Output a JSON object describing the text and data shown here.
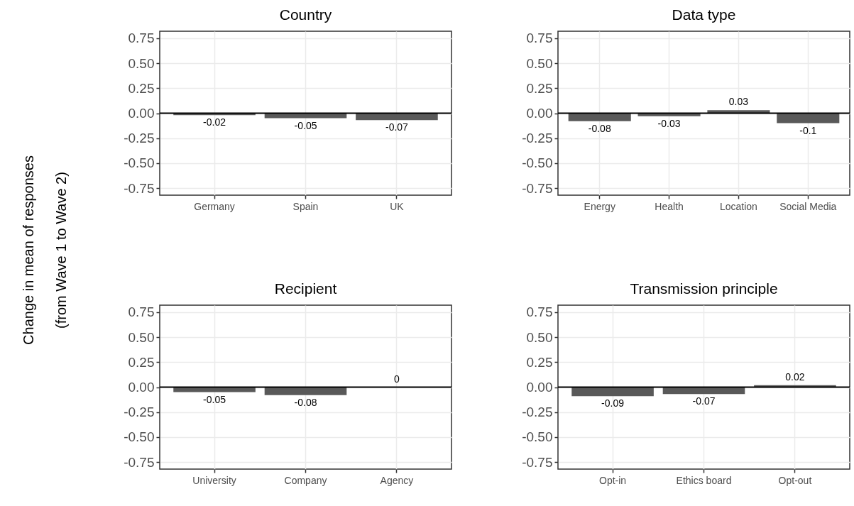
{
  "chart_data": [
    {
      "type": "bar",
      "title": "Country",
      "ylabel": "Change in mean of responses\n(from Wave 1 to Wave 2)",
      "categories": [
        "Germany",
        "Spain",
        "UK"
      ],
      "values": [
        -0.02,
        -0.05,
        -0.07
      ],
      "color": "#595959",
      "ylim": [
        -0.82,
        0.82
      ],
      "yticks": [
        {
          "value": -0.75,
          "label": "-0.75"
        },
        {
          "value": -0.5,
          "label": "-0.50"
        },
        {
          "value": -0.25,
          "label": "-0.25"
        },
        {
          "value": 0,
          "label": "0.00"
        },
        {
          "value": 0.25,
          "label": "0.25"
        },
        {
          "value": 0.5,
          "label": "0.50"
        },
        {
          "value": 0.75,
          "label": "0.75"
        }
      ],
      "grid": true,
      "data_labels": true,
      "ref_lines": [
        {
          "axis": "y",
          "value": 0,
          "color": "#000000"
        }
      ]
    },
    {
      "type": "bar",
      "title": "Data type",
      "categories": [
        "Energy",
        "Health",
        "Location",
        "Social Media"
      ],
      "values": [
        -0.08,
        -0.03,
        0.03,
        -0.1
      ],
      "color": "#595959",
      "ylim": [
        -0.82,
        0.82
      ],
      "yticks": [
        {
          "value": -0.75,
          "label": "-0.75"
        },
        {
          "value": -0.5,
          "label": "-0.50"
        },
        {
          "value": -0.25,
          "label": "-0.25"
        },
        {
          "value": 0,
          "label": "0.00"
        },
        {
          "value": 0.25,
          "label": "0.25"
        },
        {
          "value": 0.5,
          "label": "0.50"
        },
        {
          "value": 0.75,
          "label": "0.75"
        }
      ],
      "grid": true,
      "data_labels": true,
      "ref_lines": [
        {
          "axis": "y",
          "value": 0,
          "color": "#000000"
        }
      ]
    },
    {
      "type": "bar",
      "title": "Recipient",
      "categories": [
        "University",
        "Company",
        "Agency"
      ],
      "values": [
        -0.05,
        -0.08,
        0
      ],
      "color": "#595959",
      "ylim": [
        -0.82,
        0.82
      ],
      "yticks": [
        {
          "value": -0.75,
          "label": "-0.75"
        },
        {
          "value": -0.5,
          "label": "-0.50"
        },
        {
          "value": -0.25,
          "label": "-0.25"
        },
        {
          "value": 0,
          "label": "0.00"
        },
        {
          "value": 0.25,
          "label": "0.25"
        },
        {
          "value": 0.5,
          "label": "0.50"
        },
        {
          "value": 0.75,
          "label": "0.75"
        }
      ],
      "grid": true,
      "data_labels": true,
      "ref_lines": [
        {
          "axis": "y",
          "value": 0,
          "color": "#000000"
        }
      ]
    },
    {
      "type": "bar",
      "title": "Transmission principle",
      "categories": [
        "Opt-in",
        "Ethics board",
        "Opt-out"
      ],
      "values": [
        -0.09,
        -0.07,
        0.02
      ],
      "color": "#595959",
      "ylim": [
        -0.82,
        0.82
      ],
      "yticks": [
        {
          "value": -0.75,
          "label": "-0.75"
        },
        {
          "value": -0.5,
          "label": "-0.50"
        },
        {
          "value": -0.25,
          "label": "-0.25"
        },
        {
          "value": 0,
          "label": "0.00"
        },
        {
          "value": 0.25,
          "label": "0.25"
        },
        {
          "value": 0.5,
          "label": "0.50"
        },
        {
          "value": 0.75,
          "label": "0.75"
        }
      ],
      "grid": true,
      "data_labels": true,
      "ref_lines": [
        {
          "axis": "y",
          "value": 0,
          "color": "#000000"
        }
      ]
    }
  ]
}
